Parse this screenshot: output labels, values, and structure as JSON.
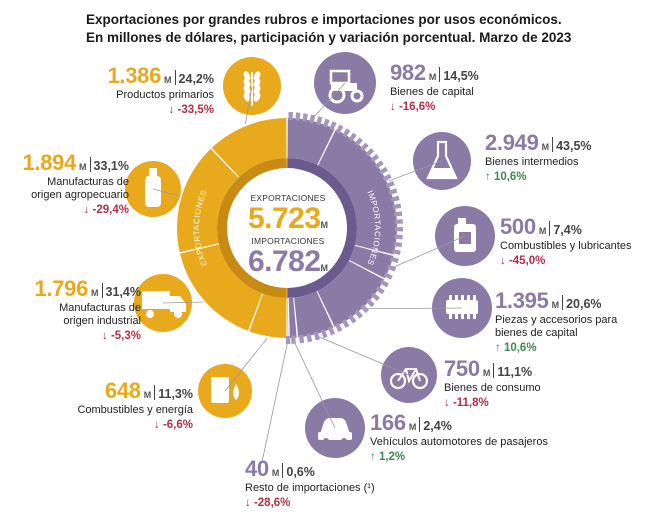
{
  "title": {
    "line1": "Exportaciones por grandes rubros e importaciones por usos económicos.",
    "line2": "En millones de dólares, participación y variación porcentual. Marzo de 2023"
  },
  "center": {
    "exports_title": "EXPORTACIONES",
    "exports_value": "5.723",
    "imports_title": "IMPORTACIONES",
    "imports_value": "6.782",
    "unit": "M",
    "ring_label_exports": "EXPORTACIONES",
    "ring_label_imports": "IMPORTACIONES"
  },
  "colors": {
    "exports": "#e8a91c",
    "exports_dark": "#c98a14",
    "imports": "#8a7aa6",
    "imports_light": "#a596bd",
    "down": "#b03048",
    "up": "#3d8a53"
  },
  "chart_data": {
    "type": "pie",
    "total_exports": 5723,
    "total_imports": 6782,
    "unit": "millones de dólares",
    "exports": [
      {
        "label": "Productos primarios",
        "value": "1.386",
        "value_num": 1386,
        "share": "24,2%",
        "change": "-33,5%",
        "icon": "wheat-icon"
      },
      {
        "label": "Manufacturas de origen agropecuario",
        "label_lines": [
          "Manufacturas de",
          "origen agropecuario"
        ],
        "value": "1.894",
        "value_num": 1894,
        "share": "33,1%",
        "change": "-29,4%",
        "icon": "bottle-icon"
      },
      {
        "label": "Manufacturas de origen industrial",
        "label_lines": [
          "Manufacturas de",
          "origen industrial"
        ],
        "value": "1.796",
        "value_num": 1796,
        "share": "31,4%",
        "change": "-5,3%",
        "icon": "truck-icon"
      },
      {
        "label": "Combustibles y energía",
        "value": "648",
        "value_num": 648,
        "share": "11,3%",
        "change": "-6,6%",
        "icon": "oil-barrel-icon"
      }
    ],
    "imports": [
      {
        "label": "Bienes de capital",
        "value": "982",
        "value_num": 982,
        "share": "14,5%",
        "change": "-16,6%",
        "direction": "down",
        "icon": "tractor-icon"
      },
      {
        "label": "Bienes intermedios",
        "value": "2.949",
        "value_num": 2949,
        "share": "43,5%",
        "change": "10,6%",
        "direction": "up",
        "icon": "flask-icon"
      },
      {
        "label": "Combustibles y lubricantes",
        "value": "500",
        "value_num": 500,
        "share": "7,4%",
        "change": "-45,0%",
        "direction": "down",
        "icon": "jerrycan-icon"
      },
      {
        "label": "Piezas y accesorios para bienes de capital",
        "label_lines": [
          "Piezas y accesorios para",
          "bienes de capital"
        ],
        "value": "1.395",
        "value_num": 1395,
        "share": "20,6%",
        "change": "10,6%",
        "direction": "up",
        "icon": "engine-part-icon"
      },
      {
        "label": "Bienes de consumo",
        "value": "750",
        "value_num": 750,
        "share": "11,1%",
        "change": "-11,8%",
        "direction": "down",
        "icon": "bicycle-icon"
      },
      {
        "label": "Vehículos automotores de pasajeros",
        "value": "166",
        "value_num": 166,
        "share": "2,4%",
        "change": "1,2%",
        "direction": "up",
        "icon": "car-icon"
      },
      {
        "label": "Resto de importaciones (¹)",
        "value": "40",
        "value_num": 40,
        "share": "0,6%",
        "change": "-28,6%",
        "direction": "down",
        "icon": ""
      }
    ]
  }
}
